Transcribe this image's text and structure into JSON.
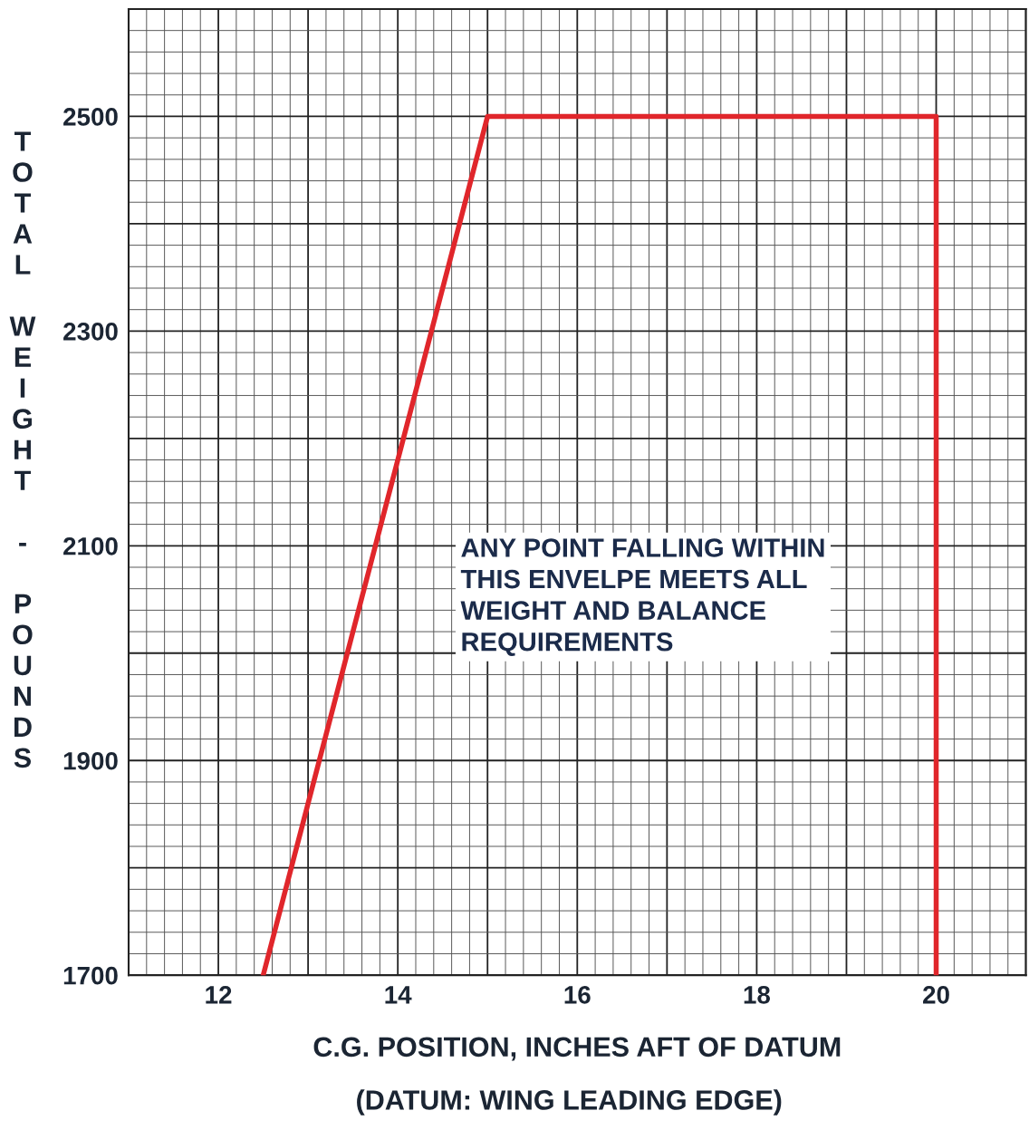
{
  "chart_data": {
    "type": "line",
    "xlabel": "C.G. POSITION, INCHES AFT OF DATUM",
    "ylabel": "TOTAL WEIGHT - POUNDS",
    "x": [
      12.5,
      15,
      20,
      20
    ],
    "series": [
      {
        "color": "#e0262b",
        "values": [
          1700,
          2500,
          2500,
          1700
        ]
      }
    ],
    "xlim": [
      11,
      21
    ],
    "ylim": [
      1700,
      2600
    ],
    "xticks": [
      {
        "value": 11,
        "label": null
      },
      12,
      {
        "value": 13,
        "label": null
      },
      14,
      {
        "value": 15,
        "label": null
      },
      16,
      {
        "value": 17,
        "label": null
      },
      18,
      {
        "value": 19,
        "label": null
      },
      20,
      {
        "value": 21,
        "label": null
      }
    ],
    "yticks": [
      1700,
      {
        "value": 1800,
        "label": null
      },
      1900,
      {
        "value": 2000,
        "label": null
      },
      2100,
      {
        "value": 2200,
        "label": null
      },
      2300,
      {
        "value": 2400,
        "label": null
      },
      2500,
      {
        "value": 2600,
        "label": null
      }
    ],
    "grid": true,
    "annotations": [
      "ANY POINT FALLING WITHIN\nTHIS ENVELPE MEETS ALL\nWEIGHT AND BALANCE\nREQUIREMENTS",
      "(DATUM: WING LEADING EDGE)"
    ]
  }
}
